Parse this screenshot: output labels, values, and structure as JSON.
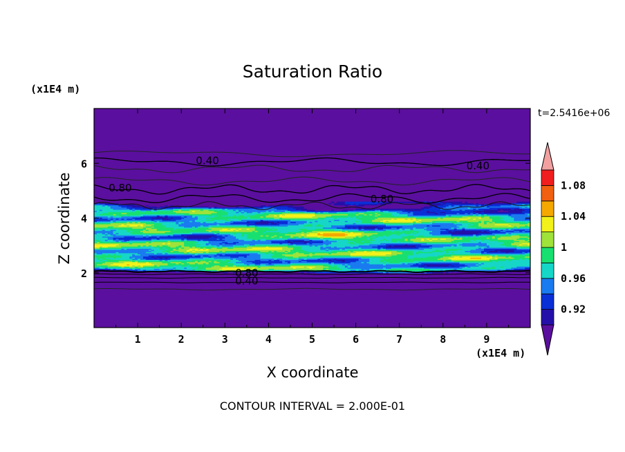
{
  "chart_data": {
    "type": "heatmap",
    "title": "Saturation Ratio",
    "xlabel": "X coordinate",
    "ylabel": "Z coordinate",
    "x_unit": "(x1E4 m)",
    "y_unit": "(x1E4 m)",
    "xlim": [
      0,
      10
    ],
    "ylim": [
      0,
      8
    ],
    "x_ticks": [
      "1",
      "2",
      "3",
      "4",
      "5",
      "6",
      "7",
      "8",
      "9"
    ],
    "y_ticks": [
      "2",
      "4",
      "6"
    ],
    "time_label": "t=2.5416e+06",
    "footer": "CONTOUR INTERVAL = 2.000E-01",
    "colorbar": {
      "levels": [
        0.9,
        0.92,
        0.94,
        0.96,
        0.98,
        1.0,
        1.02,
        1.04,
        1.06,
        1.08,
        1.1
      ],
      "labels": [
        "0.92",
        "0.96",
        "1",
        "1.04",
        "1.08"
      ],
      "colors": [
        "#5a0f9e",
        "#2410a8",
        "#0a2fd6",
        "#1a7bf0",
        "#16d6c8",
        "#18e070",
        "#9ee23a",
        "#f2f21a",
        "#f5a800",
        "#f06010",
        "#f01e1e",
        "#f2a0a0"
      ],
      "extends": "both"
    },
    "contour_labels": [
      {
        "text": "0.40",
        "x": 2.6,
        "z": 6.1
      },
      {
        "text": "0.40",
        "x": 8.8,
        "z": 5.9
      },
      {
        "text": "0.80",
        "x": 0.6,
        "z": 5.1
      },
      {
        "text": "0.80",
        "x": 6.6,
        "z": 4.7
      },
      {
        "text": "0.80",
        "x": 3.5,
        "z": 2.0
      },
      {
        "text": "0.40",
        "x": 3.5,
        "z": 1.7
      }
    ],
    "contour_levels": [
      0.4,
      0.8
    ],
    "moist_layer": {
      "z_bottom": 2.0,
      "z_top": 4.6
    }
  }
}
